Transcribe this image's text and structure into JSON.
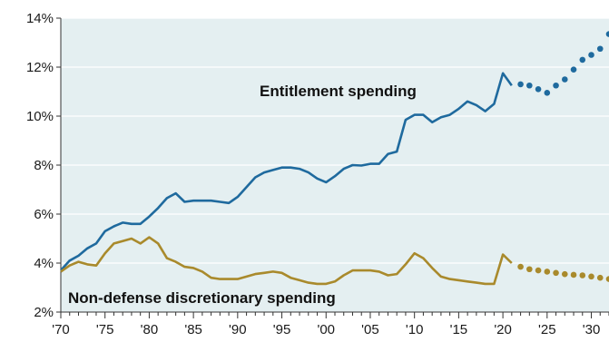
{
  "chart_data": {
    "type": "line",
    "title": "",
    "xlabel": "",
    "ylabel": "",
    "ylim": [
      2,
      14
    ],
    "xlim": [
      1970,
      2032
    ],
    "y_ticks": [
      2,
      4,
      6,
      8,
      10,
      12,
      14
    ],
    "y_tick_labels": [
      "2%",
      "4%",
      "6%",
      "8%",
      "10%",
      "12%",
      "14%"
    ],
    "x_ticks": [
      1970,
      1975,
      1980,
      1985,
      1990,
      1995,
      2000,
      2005,
      2010,
      2015,
      2020,
      2025,
      2030
    ],
    "x_tick_labels": [
      "'70",
      "'75",
      "'80",
      "'85",
      "'90",
      "'95",
      "'00",
      "'05",
      "'10",
      "'15",
      "'20",
      "'25",
      "'30"
    ],
    "grid": "horizontal",
    "background": "#e4eff1",
    "series": [
      {
        "name": "Entitlement spending",
        "color": "#1f6a9e",
        "actual": {
          "x": [
            1970,
            1971,
            1972,
            1973,
            1974,
            1975,
            1976,
            1977,
            1978,
            1979,
            1980,
            1981,
            1982,
            1983,
            1984,
            1985,
            1986,
            1987,
            1988,
            1989,
            1990,
            1991,
            1992,
            1993,
            1994,
            1995,
            1996,
            1997,
            1998,
            1999,
            2000,
            2001,
            2002,
            2003,
            2004,
            2005,
            2006,
            2007,
            2008,
            2009,
            2010,
            2011,
            2012,
            2013,
            2014,
            2015,
            2016,
            2017,
            2018,
            2019,
            2020,
            2021
          ],
          "y": [
            3.7,
            4.1,
            4.3,
            4.6,
            4.8,
            5.3,
            5.5,
            5.65,
            5.6,
            5.6,
            5.9,
            6.25,
            6.65,
            6.85,
            6.5,
            6.55,
            6.55,
            6.55,
            6.5,
            6.45,
            6.7,
            7.1,
            7.5,
            7.7,
            7.8,
            7.9,
            7.9,
            7.85,
            7.7,
            7.45,
            7.3,
            7.55,
            7.85,
            8.0,
            7.98,
            8.05,
            8.05,
            8.45,
            8.55,
            9.85,
            10.05,
            10.05,
            9.75,
            9.95,
            10.05,
            10.3,
            10.6,
            10.45,
            10.2,
            10.5,
            11.75,
            11.25
          ]
        },
        "projected": {
          "x": [
            2022,
            2023,
            2024,
            2025,
            2026,
            2027,
            2028,
            2029,
            2030,
            2031,
            2032
          ],
          "y": [
            11.3,
            11.25,
            11.1,
            10.95,
            11.25,
            11.5,
            11.9,
            12.3,
            12.5,
            12.75,
            13.35
          ]
        }
      },
      {
        "name": "Non-defense discretionary spending",
        "color": "#a98a2c",
        "actual": {
          "x": [
            1970,
            1971,
            1972,
            1973,
            1974,
            1975,
            1976,
            1977,
            1978,
            1979,
            1980,
            1981,
            1982,
            1983,
            1984,
            1985,
            1986,
            1987,
            1988,
            1989,
            1990,
            1991,
            1992,
            1993,
            1994,
            1995,
            1996,
            1997,
            1998,
            1999,
            2000,
            2001,
            2002,
            2003,
            2004,
            2005,
            2006,
            2007,
            2008,
            2009,
            2010,
            2011,
            2012,
            2013,
            2014,
            2015,
            2016,
            2017,
            2018,
            2019,
            2020,
            2021
          ],
          "y": [
            3.65,
            3.9,
            4.05,
            3.95,
            3.9,
            4.4,
            4.8,
            4.9,
            5.0,
            4.8,
            5.05,
            4.8,
            4.2,
            4.05,
            3.85,
            3.8,
            3.65,
            3.4,
            3.35,
            3.35,
            3.35,
            3.45,
            3.55,
            3.6,
            3.65,
            3.6,
            3.4,
            3.3,
            3.2,
            3.15,
            3.15,
            3.25,
            3.5,
            3.7,
            3.7,
            3.7,
            3.65,
            3.5,
            3.55,
            3.95,
            4.4,
            4.2,
            3.8,
            3.45,
            3.35,
            3.3,
            3.25,
            3.2,
            3.15,
            3.15,
            4.35,
            4.0
          ]
        },
        "projected": {
          "x": [
            2022,
            2023,
            2024,
            2025,
            2026,
            2027,
            2028,
            2029,
            2030,
            2031,
            2032
          ],
          "y": [
            3.85,
            3.75,
            3.7,
            3.65,
            3.6,
            3.55,
            3.52,
            3.5,
            3.45,
            3.4,
            3.35
          ]
        }
      }
    ]
  },
  "labels": {
    "entitlement": "Entitlement spending",
    "nondefense": "Non-defense discretionary spending"
  }
}
